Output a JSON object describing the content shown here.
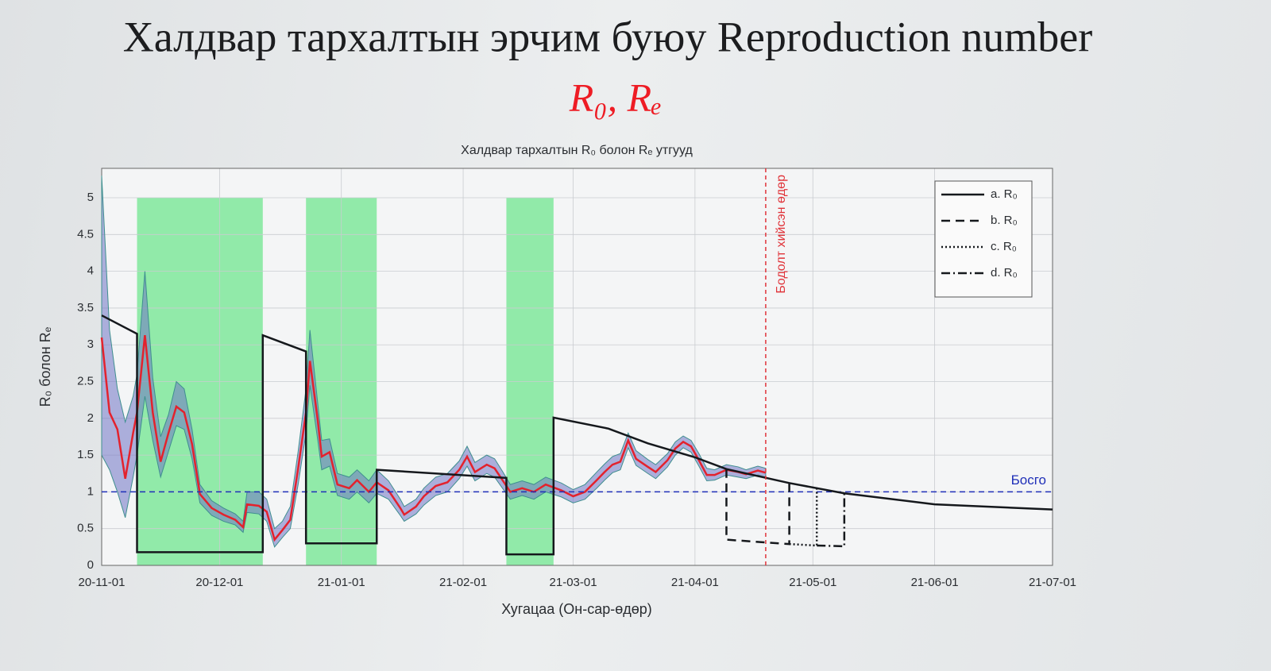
{
  "slide": {
    "title": "Халдвар тархалтын эрчим буюу Reproduction number",
    "subtitle": "R₀, Rₑ"
  },
  "chart_data": {
    "type": "line",
    "title": "Халдвар тархалтын R₀ болон Rₑ утгууд",
    "xlabel": "Хугацаа (Он-сар-өдөр)",
    "ylabel": "R₀ болон Rₑ",
    "xlim": [
      "20-11-01",
      "21-07-01"
    ],
    "xticks": [
      "20-11-01",
      "20-12-01",
      "21-01-01",
      "21-02-01",
      "21-03-01",
      "21-04-01",
      "21-05-01",
      "21-06-01",
      "21-07-01"
    ],
    "ylim": [
      0,
      5.4
    ],
    "yticks": [
      0,
      0.5,
      1,
      1.5,
      2,
      2.5,
      3,
      3.5,
      4,
      4.5,
      5
    ],
    "grid": true,
    "legend": "upper right",
    "shaded": {
      "color": "#7fe89b",
      "periods": [
        {
          "start": "20-11-10",
          "end": "20-12-12",
          "top": 5
        },
        {
          "start": "20-12-23",
          "end": "21-01-10",
          "top": 5
        },
        {
          "start": "21-02-12",
          "end": "21-02-24",
          "top": 5
        }
      ]
    },
    "estimate": {
      "color": "#e3222d",
      "band_color": "#6f72c4",
      "x": [
        "20-11-01",
        "20-11-03",
        "20-11-05",
        "20-11-07",
        "20-11-09",
        "20-11-10",
        "20-11-12",
        "20-11-14",
        "20-11-16",
        "20-11-18",
        "20-11-20",
        "20-11-22",
        "20-11-24",
        "20-11-26",
        "20-11-29",
        "20-12-02",
        "20-12-05",
        "20-12-07",
        "20-12-08",
        "20-12-11",
        "20-12-13",
        "20-12-15",
        "20-12-17",
        "20-12-19",
        "20-12-21",
        "20-12-23",
        "20-12-24",
        "20-12-26",
        "20-12-27",
        "20-12-29",
        "20-12-31",
        "21-01-03",
        "21-01-05",
        "21-01-08",
        "21-01-10",
        "21-01-13",
        "21-01-16",
        "21-01-17",
        "21-01-20",
        "21-01-22",
        "21-01-25",
        "21-01-28",
        "21-01-31",
        "21-02-02",
        "21-02-04",
        "21-02-07",
        "21-02-09",
        "21-02-11",
        "21-02-13",
        "21-02-16",
        "21-02-19",
        "21-02-22",
        "21-02-26",
        "21-03-01",
        "21-03-04",
        "21-03-07",
        "21-03-09",
        "21-03-11",
        "21-03-13",
        "21-03-15",
        "21-03-17",
        "21-03-20",
        "21-03-22",
        "21-03-25",
        "21-03-27",
        "21-03-29",
        "21-03-31",
        "21-04-02",
        "21-04-04",
        "21-04-06",
        "21-04-09",
        "21-04-12",
        "21-04-14",
        "21-04-17",
        "21-04-19"
      ],
      "values": [
        3.1,
        2.08,
        1.85,
        1.18,
        1.8,
        2.08,
        3.13,
        2.08,
        1.41,
        1.8,
        2.16,
        2.08,
        1.65,
        0.97,
        0.78,
        0.69,
        0.62,
        0.52,
        0.83,
        0.81,
        0.73,
        0.35,
        0.48,
        0.62,
        1.32,
        2.08,
        2.78,
        1.97,
        1.48,
        1.54,
        1.1,
        1.05,
        1.16,
        1.0,
        1.13,
        1.02,
        0.78,
        0.69,
        0.8,
        0.94,
        1.08,
        1.13,
        1.3,
        1.48,
        1.27,
        1.37,
        1.32,
        1.16,
        1.0,
        1.05,
        1.0,
        1.1,
        1.02,
        0.94,
        1.0,
        1.16,
        1.27,
        1.37,
        1.41,
        1.7,
        1.45,
        1.34,
        1.27,
        1.43,
        1.59,
        1.68,
        1.62,
        1.43,
        1.23,
        1.23,
        1.3,
        1.27,
        1.24,
        1.29,
        1.26
      ],
      "lower": [
        1.5,
        1.3,
        1.0,
        0.65,
        1.2,
        1.5,
        2.3,
        1.7,
        1.2,
        1.55,
        1.9,
        1.85,
        1.45,
        0.85,
        0.68,
        0.6,
        0.55,
        0.45,
        0.72,
        0.7,
        0.6,
        0.25,
        0.38,
        0.5,
        1.1,
        1.8,
        2.45,
        1.7,
        1.3,
        1.35,
        0.95,
        0.9,
        1.0,
        0.85,
        0.98,
        0.9,
        0.68,
        0.6,
        0.7,
        0.82,
        0.95,
        1.0,
        1.18,
        1.35,
        1.15,
        1.25,
        1.2,
        1.05,
        0.9,
        0.95,
        0.9,
        1.0,
        0.93,
        0.85,
        0.9,
        1.05,
        1.16,
        1.26,
        1.3,
        1.6,
        1.36,
        1.25,
        1.18,
        1.34,
        1.5,
        1.6,
        1.54,
        1.35,
        1.15,
        1.16,
        1.23,
        1.2,
        1.18,
        1.23,
        1.2
      ],
      "upper": [
        5.3,
        3.2,
        2.4,
        1.95,
        2.3,
        2.6,
        4.0,
        2.55,
        1.75,
        2.05,
        2.5,
        2.4,
        1.85,
        1.1,
        0.88,
        0.78,
        0.7,
        0.6,
        1.0,
        1.0,
        0.9,
        0.5,
        0.6,
        0.8,
        1.55,
        2.4,
        3.2,
        2.2,
        1.7,
        1.72,
        1.25,
        1.2,
        1.3,
        1.15,
        1.3,
        1.15,
        0.9,
        0.8,
        0.9,
        1.05,
        1.2,
        1.25,
        1.42,
        1.62,
        1.4,
        1.5,
        1.45,
        1.28,
        1.1,
        1.15,
        1.1,
        1.2,
        1.12,
        1.03,
        1.1,
        1.27,
        1.38,
        1.48,
        1.52,
        1.8,
        1.56,
        1.44,
        1.37,
        1.52,
        1.68,
        1.76,
        1.7,
        1.52,
        1.32,
        1.3,
        1.37,
        1.34,
        1.3,
        1.35,
        1.32
      ]
    },
    "series": [
      {
        "name": "a. R₀",
        "color": "#15181c",
        "dash": "solid",
        "x": [
          "20-11-01",
          "20-11-10",
          "20-11-10",
          "20-12-12",
          "20-12-12",
          "20-12-23",
          "20-12-23",
          "21-01-10",
          "21-01-10",
          "21-02-12",
          "21-02-12",
          "21-02-24",
          "21-02-24",
          "21-03-10",
          "21-03-20",
          "21-04-01",
          "21-04-09",
          "21-04-25",
          "21-05-09",
          "21-06-01",
          "21-07-01"
        ],
        "values": [
          3.4,
          3.15,
          0.18,
          0.18,
          3.13,
          2.91,
          0.3,
          0.3,
          1.3,
          1.19,
          0.15,
          0.15,
          2.01,
          1.86,
          1.66,
          1.47,
          1.31,
          1.12,
          0.98,
          0.83,
          0.76
        ]
      },
      {
        "name": "b. R₀",
        "color": "#15181c",
        "dash": "dashed",
        "x": [
          "21-04-09",
          "21-04-09",
          "21-04-25",
          "21-04-25"
        ],
        "values": [
          1.31,
          0.35,
          0.29,
          1.12
        ]
      },
      {
        "name": "c. R₀",
        "color": "#15181c",
        "dash": "dotted",
        "x": [
          "21-04-25",
          "21-05-02",
          "21-05-02"
        ],
        "values": [
          0.29,
          0.27,
          1.05
        ]
      },
      {
        "name": "d. R₀",
        "color": "#15181c",
        "dash": "dashdot",
        "x": [
          "21-05-02",
          "21-05-09",
          "21-05-09"
        ],
        "values": [
          0.27,
          0.26,
          0.98
        ]
      }
    ],
    "threshold": {
      "value": 1,
      "label": "Босго",
      "color": "#1f2fb8"
    },
    "marker_date": {
      "x": "21-04-19",
      "label": "Бодолт хийсэн өдөр",
      "color": "#e0343a"
    }
  }
}
